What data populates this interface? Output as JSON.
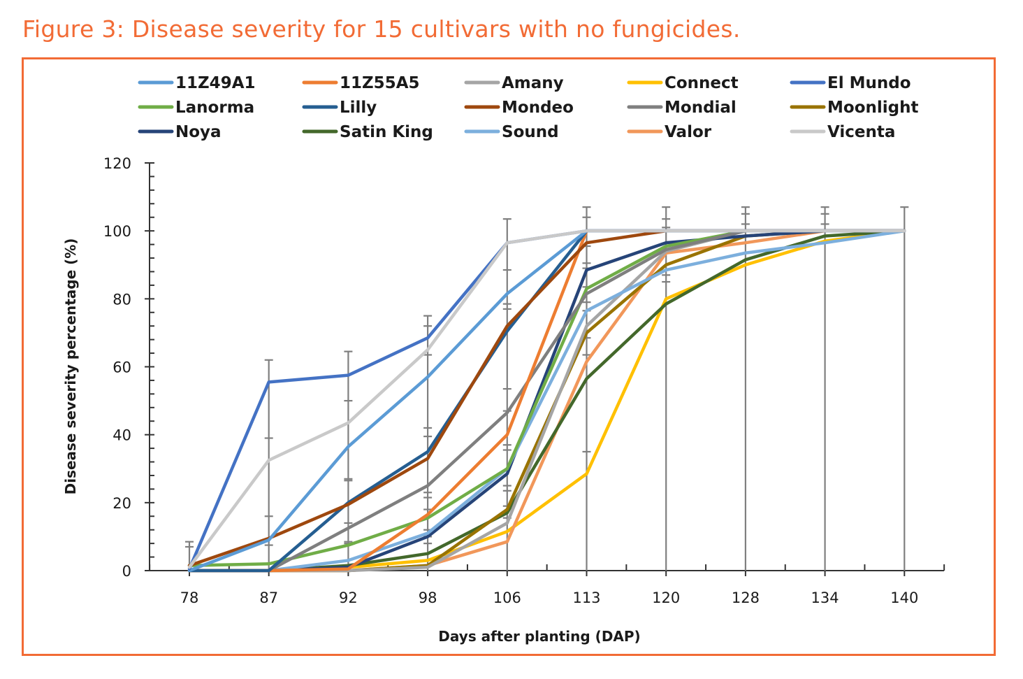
{
  "figure": {
    "title": "Figure 3: Disease severity for 15 cultivars with no fungicides.",
    "accent_color": "#F26B35"
  },
  "chart_data": {
    "type": "line",
    "title": "Figure 3: Disease severity for 15 cultivars with no fungicides.",
    "xlabel": "Days after planting (DAP)",
    "ylabel": "Disease severity percentage (%)",
    "categories": [
      "78",
      "87",
      "92",
      "98",
      "106",
      "113",
      "120",
      "128",
      "134",
      "140"
    ],
    "ylim": [
      0,
      120
    ],
    "yticks": [
      0,
      20,
      40,
      60,
      80,
      100,
      120
    ],
    "y_minor_step": 4,
    "grid": false,
    "legend_position": "top",
    "error_bars": "positive, approx. 7 units, selected points",
    "series": [
      {
        "name": "11Z49A1",
        "color": "#5B9BD5",
        "values": [
          0,
          9,
          36.5,
          57,
          81.5,
          100,
          100,
          100,
          100,
          100
        ]
      },
      {
        "name": "11Z55A5",
        "color": "#ED7D31",
        "values": [
          0,
          0,
          0.5,
          16.5,
          40,
          100,
          100,
          100,
          100,
          100
        ]
      },
      {
        "name": "Amany",
        "color": "#A5A5A5",
        "values": [
          0,
          0,
          0,
          1,
          14,
          72,
          94,
          100,
          100,
          100
        ]
      },
      {
        "name": "Connect",
        "color": "#FFC000",
        "values": [
          0,
          0,
          1,
          3,
          11.5,
          28.5,
          80,
          90,
          97,
          100
        ]
      },
      {
        "name": "El Mundo",
        "color": "#4472C4",
        "values": [
          0.5,
          55.5,
          57.5,
          68.5,
          96.5,
          100,
          100,
          100,
          100,
          100
        ]
      },
      {
        "name": "Lanorma",
        "color": "#70AD47",
        "values": [
          1.5,
          2,
          7.5,
          15.5,
          30,
          83,
          95.5,
          100,
          100,
          100
        ]
      },
      {
        "name": "Lilly",
        "color": "#255E91",
        "values": [
          0,
          0,
          20,
          35,
          70.5,
          100,
          100,
          100,
          100,
          100
        ]
      },
      {
        "name": "Mondeo",
        "color": "#9E480E",
        "values": [
          1.5,
          9.5,
          19.5,
          33,
          72,
          96.5,
          100,
          100,
          100,
          100
        ]
      },
      {
        "name": "Mondial",
        "color": "#7F7F7F",
        "values": [
          0,
          0,
          12.5,
          25,
          46.5,
          81.5,
          94.5,
          100,
          100,
          100
        ]
      },
      {
        "name": "Moonlight",
        "color": "#997300",
        "values": [
          0,
          0,
          0,
          1.5,
          18,
          70,
          90,
          98.5,
          100,
          100
        ]
      },
      {
        "name": "Noya",
        "color": "#264478",
        "values": [
          0,
          0,
          1,
          10,
          28.5,
          88.5,
          96.5,
          98.5,
          100,
          100
        ]
      },
      {
        "name": "Satin King",
        "color": "#43682B",
        "values": [
          0,
          0,
          1.5,
          5,
          17,
          56.5,
          78.5,
          91.5,
          98.5,
          100
        ]
      },
      {
        "name": "Sound",
        "color": "#7CAFDD",
        "values": [
          0,
          0,
          3,
          11,
          30,
          76.5,
          88.5,
          93.5,
          96.5,
          100
        ]
      },
      {
        "name": "Valor",
        "color": "#F1975A",
        "values": [
          0,
          0,
          0,
          1.5,
          8.5,
          61.5,
          93.5,
          96.5,
          100,
          100
        ]
      },
      {
        "name": "Vicenta",
        "color": "#C9C9C9",
        "values": [
          1,
          32.5,
          43.5,
          65,
          96.5,
          100,
          100,
          100,
          100,
          100
        ]
      }
    ],
    "error_bar_points": [
      {
        "x_index": 0,
        "top": 8.5
      },
      {
        "x_index": 0,
        "top": 7
      },
      {
        "x_index": 1,
        "top": 62
      },
      {
        "x_index": 1,
        "top": 39
      },
      {
        "x_index": 1,
        "top": 16
      },
      {
        "x_index": 1,
        "top": 7.5
      },
      {
        "x_index": 2,
        "top": 64.5
      },
      {
        "x_index": 2,
        "top": 50
      },
      {
        "x_index": 2,
        "top": 27
      },
      {
        "x_index": 2,
        "top": 26.5
      },
      {
        "x_index": 2,
        "top": 14
      },
      {
        "x_index": 2,
        "top": 8.5
      },
      {
        "x_index": 2,
        "top": 8
      },
      {
        "x_index": 3,
        "top": 75
      },
      {
        "x_index": 3,
        "top": 72
      },
      {
        "x_index": 3,
        "top": 63.5
      },
      {
        "x_index": 3,
        "top": 42
      },
      {
        "x_index": 3,
        "top": 39.5
      },
      {
        "x_index": 3,
        "top": 23
      },
      {
        "x_index": 3,
        "top": 21.5
      },
      {
        "x_index": 3,
        "top": 18
      },
      {
        "x_index": 3,
        "top": 12
      },
      {
        "x_index": 3,
        "top": 10
      },
      {
        "x_index": 3,
        "top": 8
      },
      {
        "x_index": 4,
        "top": 103.5
      },
      {
        "x_index": 4,
        "top": 88.5
      },
      {
        "x_index": 4,
        "top": 78.5
      },
      {
        "x_index": 4,
        "top": 77
      },
      {
        "x_index": 4,
        "top": 53.5
      },
      {
        "x_index": 4,
        "top": 47
      },
      {
        "x_index": 4,
        "top": 37
      },
      {
        "x_index": 4,
        "top": 35.5
      },
      {
        "x_index": 4,
        "top": 25
      },
      {
        "x_index": 4,
        "top": 23.5
      },
      {
        "x_index": 4,
        "top": 19
      },
      {
        "x_index": 4,
        "top": 15.5
      },
      {
        "x_index": 5,
        "top": 107
      },
      {
        "x_index": 5,
        "top": 104
      },
      {
        "x_index": 5,
        "top": 95.5
      },
      {
        "x_index": 5,
        "top": 90.5
      },
      {
        "x_index": 5,
        "top": 89
      },
      {
        "x_index": 5,
        "top": 83.5
      },
      {
        "x_index": 5,
        "top": 79
      },
      {
        "x_index": 5,
        "top": 76.5
      },
      {
        "x_index": 5,
        "top": 68.5
      },
      {
        "x_index": 5,
        "top": 63.5
      },
      {
        "x_index": 5,
        "top": 35
      },
      {
        "x_index": 6,
        "top": 107
      },
      {
        "x_index": 6,
        "top": 103.5
      },
      {
        "x_index": 6,
        "top": 101
      },
      {
        "x_index": 6,
        "top": 87
      },
      {
        "x_index": 6,
        "top": 85
      },
      {
        "x_index": 7,
        "top": 107
      },
      {
        "x_index": 7,
        "top": 105
      },
      {
        "x_index": 7,
        "top": 102
      },
      {
        "x_index": 8,
        "top": 107
      },
      {
        "x_index": 8,
        "top": 105
      },
      {
        "x_index": 8,
        "top": 102
      },
      {
        "x_index": 9,
        "top": 107
      }
    ]
  }
}
